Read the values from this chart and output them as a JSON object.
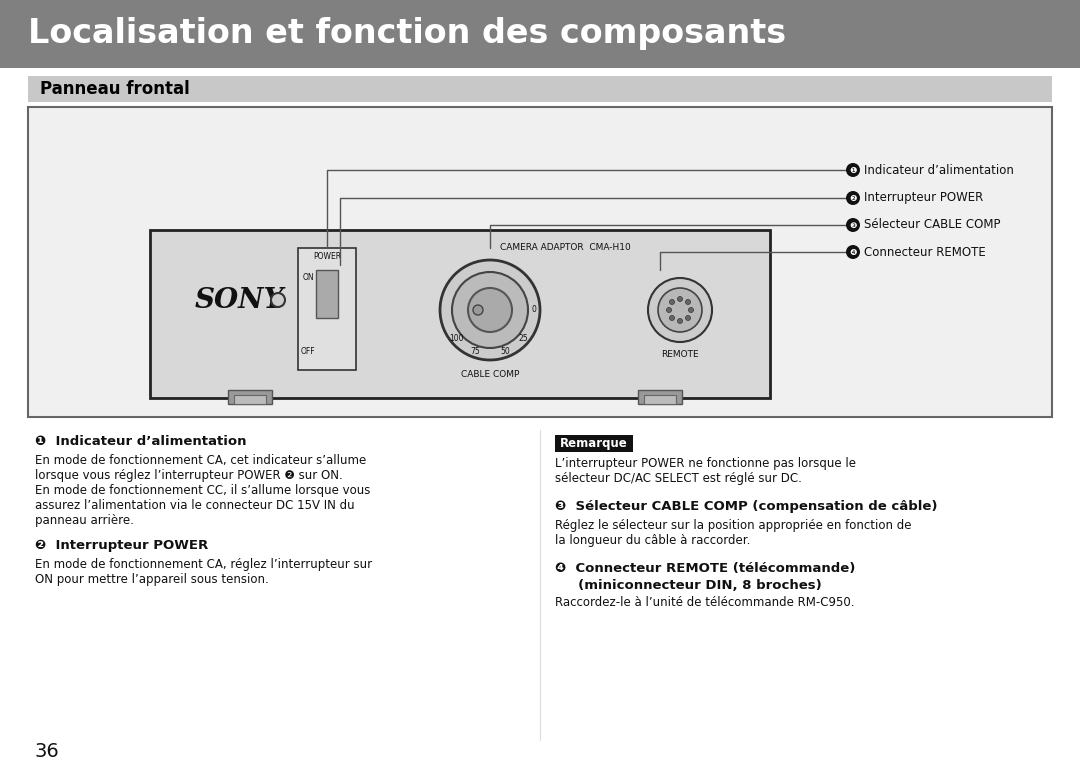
{
  "title": "Localisation et fonction des composants",
  "title_bg": "#808080",
  "title_color": "#ffffff",
  "subtitle": "Panneau frontal",
  "subtitle_bg": "#c8c8c8",
  "subtitle_color": "#000000",
  "page_bg": "#ffffff",
  "page_number": "36",
  "callout_labels": [
    "Indicateur d’alimentation",
    "Interrupteur POWER",
    "Sélecteur CABLE COMP",
    "Connecteur REMOTE"
  ],
  "section1_title": "❶  Indicateur d’alimentation",
  "section1_body1": "En mode de fonctionnement CA, cet indicateur s’allume",
  "section1_body2": "lorsque vous réglez l’interrupteur POWER ❷ sur ON.",
  "section1_body3": "En mode de fonctionnement CC, il s’allume lorsque vous",
  "section1_body4": "assurez l’alimentation via le connecteur DC 15V IN du",
  "section1_body5": "panneau arrière.",
  "section2_title": "❷  Interrupteur POWER",
  "section2_body1": "En mode de fonctionnement CA, réglez l’interrupteur sur",
  "section2_body2": "ON pour mettre l’appareil sous tension.",
  "note_title": "Remarque",
  "note_body1": "L’interrupteur POWER ne fonctionne pas lorsque le",
  "note_body2": "sélecteur DC/AC SELECT est réglé sur DC.",
  "section3_title": "❸  Sélecteur CABLE COMP (compensation de câble)",
  "section3_body1": "Réglez le sélecteur sur la position appropriée en fonction de",
  "section3_body2": "la longueur du câble à raccorder.",
  "section4_title_1": "❹  Connecteur REMOTE (télécommande)",
  "section4_title_2": "     (miniconnecteur DIN, 8 broches)",
  "section4_body": "Raccordez-le à l’unité de télécommande RM-C950.",
  "sony_text": "SONY",
  "device_label": "CAMERA ADAPTOR  CMA-H10",
  "power_label": "POWER",
  "on_label": "ON",
  "off_label": "OFF",
  "cable_comp_label": "CABLE COMP",
  "remote_label": "REMOTE"
}
